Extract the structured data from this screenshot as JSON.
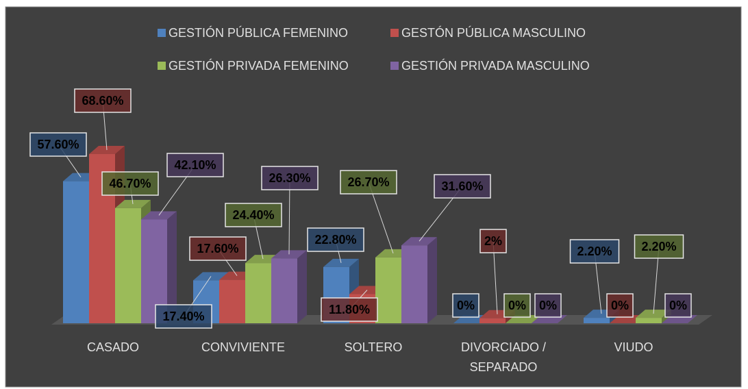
{
  "chart_data": {
    "type": "bar3d",
    "categories": [
      "CASADO",
      "CONVIVIENTE",
      "SOLTERO",
      "DIVORCIADO / SEPARADO",
      "VIUDO"
    ],
    "series": [
      {
        "name": "GESTIÓN PÚBLICA FEMENINO",
        "color": "#4f81bd",
        "values": [
          57.6,
          17.4,
          22.8,
          0,
          2.2
        ],
        "value_labels": [
          "57.60%",
          "17.40%",
          "22.80%",
          "0%",
          "2.20%"
        ]
      },
      {
        "name": "GESTÓN PÚBLICA MASCULINO",
        "color": "#c0504d",
        "values": [
          68.6,
          17.6,
          11.8,
          2,
          0
        ],
        "value_labels": [
          "68.60%",
          "17.60%",
          "11.80%",
          "2%",
          "0%"
        ]
      },
      {
        "name": "GESTIÓN PRIVADA FEMENINO",
        "color": "#9bbb59",
        "values": [
          46.7,
          24.4,
          26.7,
          0,
          2.2
        ],
        "value_labels": [
          "46.70%",
          "24.40%",
          "26.70%",
          "0%",
          "2.20%"
        ]
      },
      {
        "name": "GESTIÓN PRIVADA MASCULINO",
        "color": "#8064a2",
        "values": [
          42.1,
          26.3,
          31.6,
          0,
          0
        ],
        "value_labels": [
          "42.10%",
          "26.30%",
          "31.60%",
          "0%",
          "0%"
        ]
      }
    ]
  }
}
